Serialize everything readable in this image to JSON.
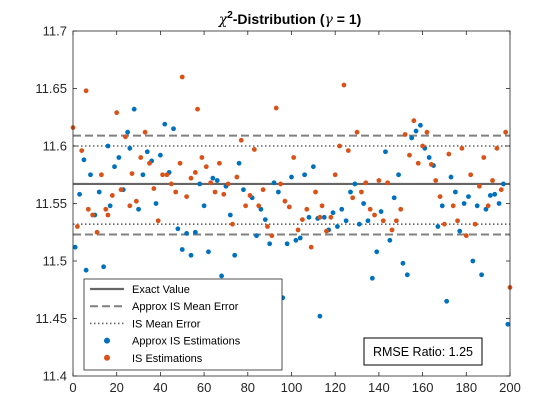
{
  "chart_data": {
    "type": "scatter",
    "title": "χ²-Distribution (γ = 1)",
    "xlim": [
      0,
      200
    ],
    "ylim": [
      11.4,
      11.7
    ],
    "x_ticks": [
      0,
      20,
      40,
      60,
      80,
      100,
      120,
      140,
      160,
      180,
      200
    ],
    "x_tick_labels": [
      "0",
      "20",
      "40",
      "60",
      "80",
      "100",
      "120",
      "140",
      "160",
      "180",
      "200"
    ],
    "y_ticks": [
      11.4,
      11.45,
      11.5,
      11.55,
      11.6,
      11.65,
      11.7
    ],
    "y_tick_labels": [
      "11.4",
      "11.45",
      "11.5",
      "11.55",
      "11.6",
      "11.65",
      "11.7"
    ],
    "grid": false,
    "legend_position": "bottom-left",
    "reference_lines": [
      {
        "name": "Exact Value",
        "style": "solid",
        "color": "#666666",
        "values": [
          11.567
        ]
      },
      {
        "name": "Approx IS Mean Error",
        "style": "dashed",
        "color": "#808080",
        "values": [
          11.609,
          11.523
        ]
      },
      {
        "name": "IS Mean Error",
        "style": "dotted",
        "color": "#666666",
        "values": [
          11.6,
          11.532
        ]
      }
    ],
    "series": [
      {
        "name": "Approx IS Estimations",
        "color": "#0072BD",
        "x": [
          1,
          3,
          5,
          6,
          8,
          10,
          12,
          14,
          16,
          17,
          19,
          21,
          23,
          25,
          26,
          28,
          30,
          32,
          34,
          36,
          38,
          40,
          42,
          44,
          46,
          48,
          50,
          52,
          54,
          56,
          58,
          60,
          62,
          64,
          66,
          68,
          70,
          72,
          74,
          76,
          78,
          80,
          82,
          84,
          86,
          88,
          90,
          92,
          94,
          96,
          98,
          100,
          102,
          104,
          106,
          108,
          110,
          112,
          113,
          115,
          117,
          119,
          121,
          123,
          125,
          127,
          129,
          131,
          133,
          135,
          137,
          139,
          141,
          143,
          145,
          147,
          149,
          151,
          153,
          155,
          157,
          159,
          161,
          163,
          165,
          167,
          169,
          171,
          173,
          175,
          177,
          179,
          181,
          183,
          185,
          187,
          189,
          191,
          193,
          195,
          197,
          199
        ],
        "y": [
          11.512,
          11.558,
          11.588,
          11.492,
          11.575,
          11.54,
          11.56,
          11.495,
          11.6,
          11.548,
          11.582,
          11.59,
          11.562,
          11.612,
          11.598,
          11.632,
          11.545,
          11.575,
          11.595,
          11.587,
          11.55,
          11.592,
          11.619,
          11.577,
          11.615,
          11.528,
          11.51,
          11.524,
          11.505,
          11.525,
          11.567,
          11.548,
          11.508,
          11.572,
          11.57,
          11.487,
          11.565,
          11.54,
          11.505,
          11.585,
          11.562,
          11.472,
          11.555,
          11.522,
          11.545,
          11.536,
          11.515,
          11.568,
          11.56,
          11.468,
          11.515,
          11.573,
          11.518,
          11.52,
          11.575,
          11.538,
          11.582,
          11.537,
          11.452,
          11.538,
          11.527,
          11.542,
          11.53,
          11.545,
          11.535,
          11.56,
          11.567,
          11.532,
          11.55,
          11.535,
          11.485,
          11.508,
          11.543,
          11.595,
          11.518,
          11.555,
          11.575,
          11.498,
          11.488,
          11.607,
          11.613,
          11.618,
          11.598,
          11.59,
          11.583,
          11.53,
          11.548,
          11.465,
          11.573,
          11.56,
          11.526,
          11.55,
          11.556,
          11.5,
          11.548,
          11.488,
          11.545,
          11.557,
          11.558,
          11.55,
          11.567,
          11.445
        ]
      },
      {
        "name": "IS Estimations",
        "color": "#D95319",
        "x": [
          0,
          2,
          4,
          6,
          7,
          9,
          11,
          13,
          15,
          16,
          18,
          20,
          22,
          24,
          26,
          27,
          29,
          31,
          33,
          35,
          37,
          39,
          41,
          43,
          45,
          47,
          49,
          50,
          52,
          54,
          56,
          57,
          59,
          61,
          63,
          65,
          67,
          69,
          71,
          73,
          75,
          77,
          79,
          81,
          83,
          85,
          87,
          89,
          91,
          93,
          95,
          97,
          99,
          101,
          103,
          105,
          107,
          109,
          111,
          113,
          114,
          116,
          118,
          120,
          122,
          124,
          126,
          128,
          130,
          132,
          134,
          136,
          138,
          140,
          142,
          144,
          146,
          148,
          150,
          152,
          154,
          156,
          158,
          160,
          162,
          164,
          166,
          168,
          170,
          172,
          174,
          176,
          178,
          180,
          182,
          184,
          186,
          188,
          190,
          192,
          194,
          196,
          198,
          200
        ],
        "y": [
          11.616,
          11.53,
          11.596,
          11.648,
          11.545,
          11.54,
          11.525,
          11.575,
          11.545,
          11.54,
          11.557,
          11.629,
          11.562,
          11.608,
          11.548,
          11.576,
          11.552,
          11.59,
          11.612,
          11.585,
          11.563,
          11.535,
          11.575,
          11.575,
          11.567,
          11.56,
          11.585,
          11.66,
          11.556,
          11.572,
          11.577,
          11.632,
          11.59,
          11.582,
          11.568,
          11.56,
          11.585,
          11.558,
          11.567,
          11.532,
          11.573,
          11.605,
          11.548,
          11.557,
          11.597,
          11.548,
          11.562,
          11.53,
          11.522,
          11.633,
          11.567,
          11.552,
          11.547,
          11.59,
          11.527,
          11.536,
          11.545,
          11.512,
          11.56,
          11.538,
          11.548,
          11.526,
          11.538,
          11.575,
          11.6,
          11.653,
          11.596,
          11.555,
          11.612,
          11.56,
          11.568,
          11.545,
          11.54,
          11.57,
          11.535,
          11.568,
          11.527,
          11.535,
          11.545,
          11.61,
          11.592,
          11.622,
          11.585,
          11.6,
          11.612,
          11.584,
          11.57,
          11.556,
          11.532,
          11.593,
          11.548,
          11.535,
          11.598,
          11.522,
          11.575,
          11.532,
          11.565,
          11.59,
          11.548,
          11.57,
          11.598,
          11.562,
          11.612,
          11.477
        ]
      }
    ],
    "legend": [
      {
        "label": "Exact Value",
        "kind": "solid-line"
      },
      {
        "label": "Approx IS Mean Error",
        "kind": "dashed-line"
      },
      {
        "label": "IS Mean Error",
        "kind": "dotted-line"
      },
      {
        "label": "Approx IS Estimations",
        "kind": "marker-blue"
      },
      {
        "label": "IS Estimations",
        "kind": "marker-orange"
      }
    ],
    "annotation": "RMSE Ratio: 1.25"
  }
}
